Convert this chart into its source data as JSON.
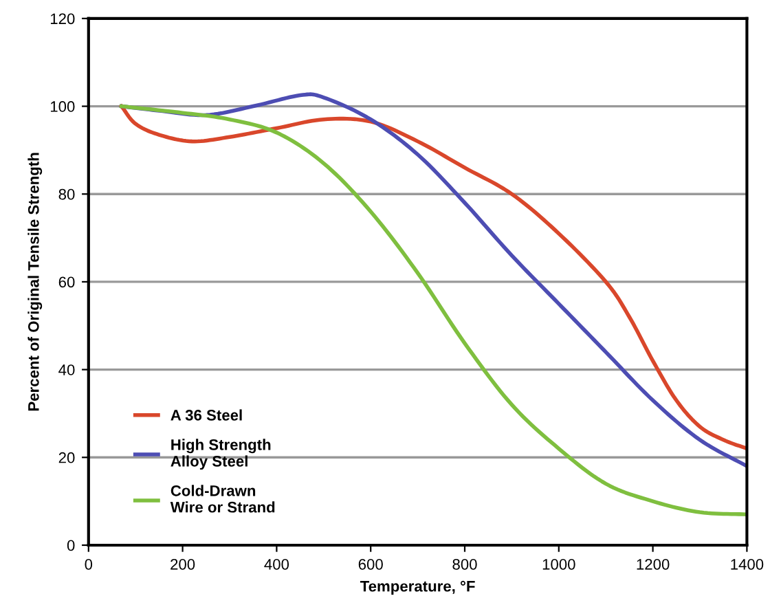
{
  "chart_data": {
    "type": "line",
    "xlabel": "Temperature, °F",
    "ylabel": "Percent of Original Tensile Strength",
    "xlim": [
      0,
      1400
    ],
    "xticks": [
      0,
      200,
      400,
      600,
      800,
      1000,
      1200,
      1400
    ],
    "ylim": [
      0,
      120
    ],
    "yticks": [
      0,
      20,
      40,
      60,
      80,
      100,
      120
    ],
    "grid": "y",
    "legend": "bottom left",
    "marker": "none",
    "line_style": "solid",
    "series": [
      {
        "name": "A 36 Steel",
        "color": "#d9472b",
        "x": [
          70,
          100,
          150,
          220,
          300,
          400,
          500,
          600,
          700,
          800,
          900,
          1000,
          1100,
          1150,
          1200,
          1250,
          1300,
          1350,
          1400
        ],
        "values": [
          100,
          96,
          93.5,
          92,
          93,
          95,
          97,
          96.5,
          92,
          86,
          80,
          71,
          60,
          52,
          42,
          33,
          27,
          24,
          22
        ]
      },
      {
        "name": "High Strength\nAlloy Steel",
        "color": "#4d4db3",
        "x": [
          70,
          150,
          250,
          350,
          450,
          500,
          600,
          700,
          800,
          900,
          1000,
          1100,
          1200,
          1300,
          1400
        ],
        "values": [
          100,
          99,
          98,
          100,
          102.5,
          102,
          97,
          89,
          78,
          66,
          55,
          44,
          33,
          24,
          18
        ]
      },
      {
        "name": "Cold-Drawn\nWire or Strand",
        "color": "#7fbf3f",
        "x": [
          70,
          200,
          300,
          400,
          500,
          600,
          700,
          800,
          900,
          1000,
          1100,
          1200,
          1300,
          1400
        ],
        "values": [
          100,
          98.5,
          97,
          94,
          87,
          76,
          62,
          46,
          32,
          22,
          14,
          10,
          7.5,
          7
        ]
      }
    ]
  }
}
